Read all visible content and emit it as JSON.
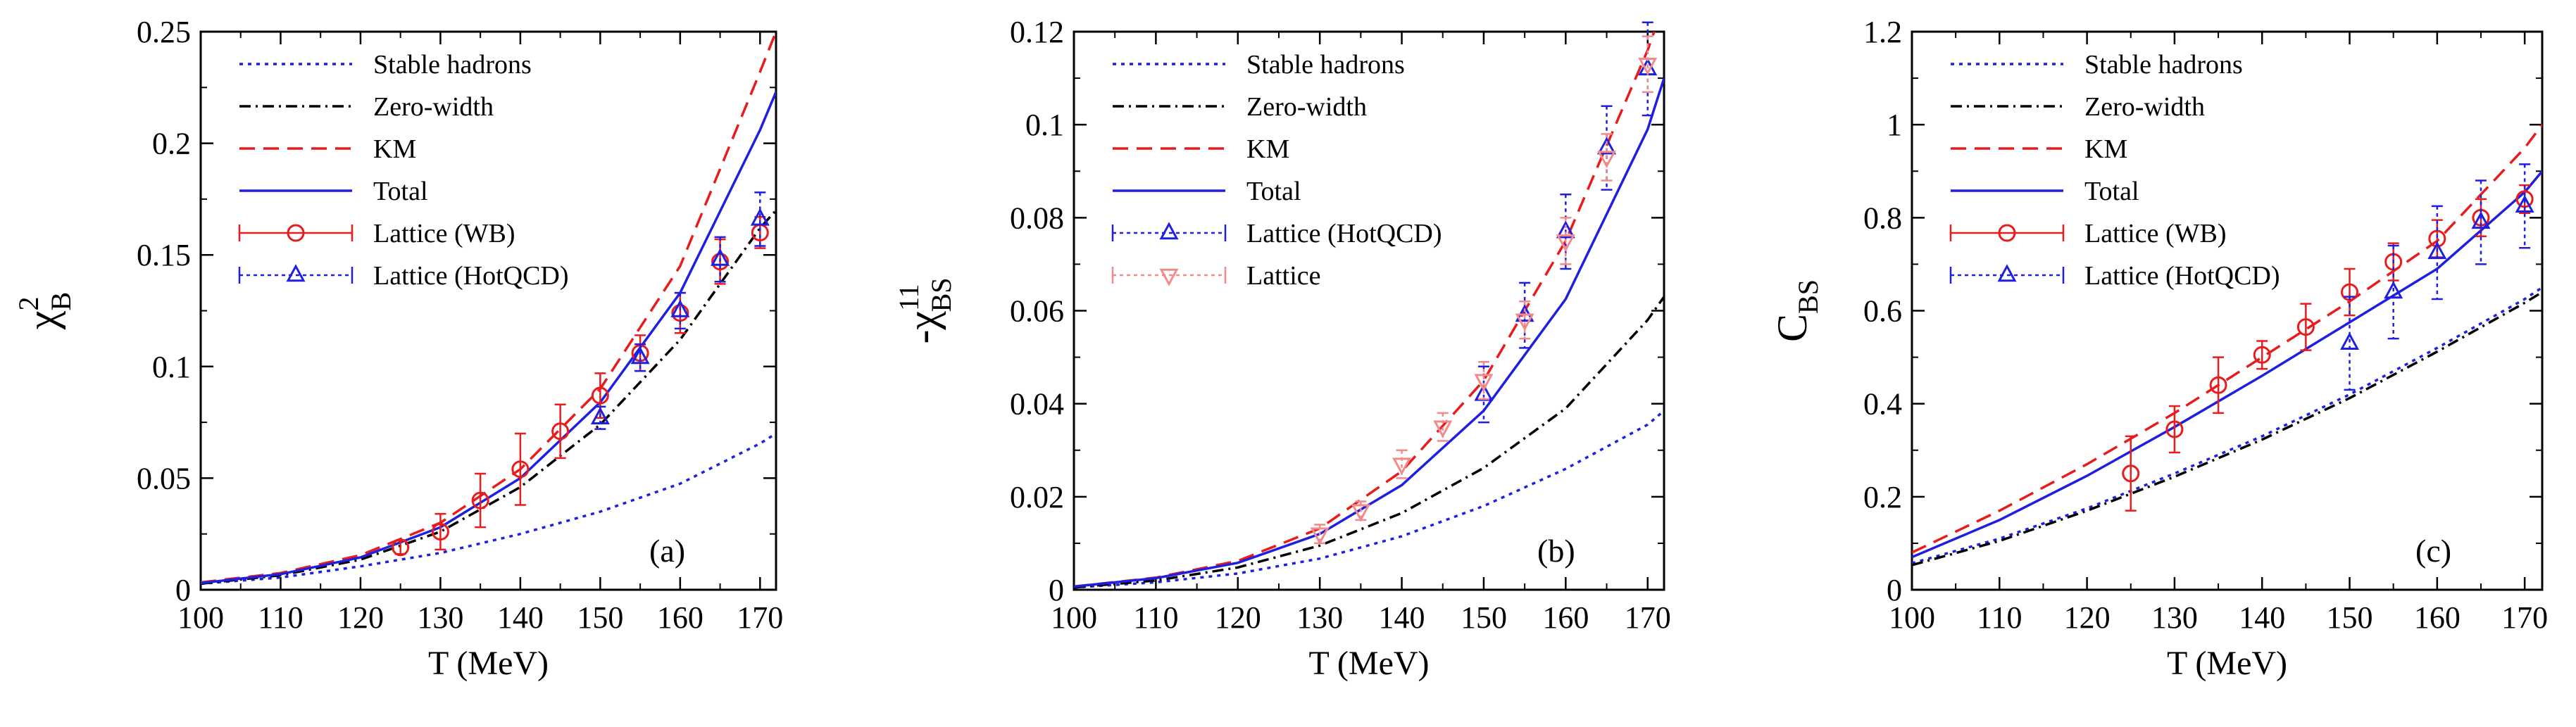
{
  "chart_data": [
    {
      "type": "line",
      "panel_label": "(a)",
      "ylabel": {
        "main": "χ",
        "sup": "2",
        "sub": "B"
      },
      "xlabel": "T (MeV)",
      "xlim": [
        100,
        172
      ],
      "ylim": [
        0,
        0.25
      ],
      "xticks": [
        100,
        110,
        120,
        130,
        140,
        150,
        160,
        170
      ],
      "xtick_labels": [
        "100",
        "110",
        "120",
        "130",
        "140",
        "150",
        "160",
        "170"
      ],
      "yticks": [
        0,
        0.05,
        0.1,
        0.15,
        0.2,
        0.25
      ],
      "ytick_labels": [
        "0",
        "0.05",
        "0.1",
        "0.15",
        "0.2",
        "0.25"
      ],
      "legend_position": "top-left",
      "series": [
        {
          "name": "Stable hadrons",
          "kind": "line",
          "style": "dotted",
          "color": "#1f1fe0",
          "x": [
            100,
            110,
            120,
            130,
            140,
            150,
            160,
            170,
            172
          ],
          "y": [
            0.0027,
            0.0055,
            0.0105,
            0.0165,
            0.025,
            0.035,
            0.0475,
            0.0655,
            0.07
          ]
        },
        {
          "name": "Zero-width",
          "kind": "line",
          "style": "dashdot",
          "color": "#000000",
          "x": [
            100,
            110,
            120,
            130,
            140,
            150,
            160,
            170,
            172
          ],
          "y": [
            0.0027,
            0.0065,
            0.0135,
            0.026,
            0.046,
            0.074,
            0.112,
            0.162,
            0.17
          ]
        },
        {
          "name": "KM",
          "kind": "line",
          "style": "dashed",
          "color": "#e81c1c",
          "x": [
            100,
            110,
            120,
            130,
            140,
            150,
            160,
            170,
            172
          ],
          "y": [
            0.0033,
            0.0075,
            0.0155,
            0.03,
            0.054,
            0.09,
            0.145,
            0.232,
            0.25
          ]
        },
        {
          "name": "Total",
          "kind": "line",
          "style": "solid",
          "color": "#1f1fe0",
          "x": [
            100,
            110,
            120,
            130,
            140,
            150,
            160,
            170,
            172
          ],
          "y": [
            0.003,
            0.007,
            0.0145,
            0.028,
            0.05,
            0.084,
            0.133,
            0.206,
            0.223
          ]
        },
        {
          "name": "Lattice (WB)",
          "kind": "points",
          "marker": "circle",
          "color": "#e81c1c",
          "x": [
            125,
            130,
            135,
            140,
            145,
            150,
            155,
            160,
            165,
            170
          ],
          "y": [
            0.019,
            0.026,
            0.04,
            0.054,
            0.071,
            0.087,
            0.106,
            0.124,
            0.147,
            0.16
          ],
          "err": [
            0.003,
            0.008,
            0.012,
            0.016,
            0.012,
            0.01,
            0.008,
            0.009,
            0.01,
            0.007
          ]
        },
        {
          "name": "Lattice (HotQCD)",
          "kind": "points",
          "marker": "triangle-up",
          "color": "#1f1fe0",
          "x": [
            150,
            155,
            160,
            165,
            170
          ],
          "y": [
            0.077,
            0.104,
            0.125,
            0.148,
            0.166
          ],
          "err": [
            0.005,
            0.006,
            0.008,
            0.01,
            0.012
          ]
        }
      ]
    },
    {
      "type": "line",
      "panel_label": "(b)",
      "ylabel": {
        "main": "-χ",
        "sup": "11",
        "sub": "BS"
      },
      "xlabel": "T (MeV)",
      "xlim": [
        100,
        172
      ],
      "ylim": [
        0,
        0.12
      ],
      "xticks": [
        100,
        110,
        120,
        130,
        140,
        150,
        160,
        170
      ],
      "xtick_labels": [
        "100",
        "110",
        "120",
        "130",
        "140",
        "150",
        "160",
        "170"
      ],
      "yticks": [
        0,
        0.02,
        0.04,
        0.06,
        0.08,
        0.1,
        0.12
      ],
      "ytick_labels": [
        "0",
        "0.02",
        "0.04",
        "0.06",
        "0.08",
        "0.1",
        "0.12"
      ],
      "legend_position": "top-left",
      "series": [
        {
          "name": "Stable hadrons",
          "kind": "line",
          "style": "dotted",
          "color": "#1f1fe0",
          "x": [
            100,
            110,
            120,
            130,
            140,
            150,
            160,
            170,
            172
          ],
          "y": [
            0.0005,
            0.0016,
            0.0035,
            0.0067,
            0.0115,
            0.018,
            0.026,
            0.0355,
            0.0385
          ]
        },
        {
          "name": "Zero-width",
          "kind": "line",
          "style": "dashdot",
          "color": "#000000",
          "x": [
            100,
            110,
            120,
            130,
            140,
            150,
            160,
            170,
            172
          ],
          "y": [
            0.0005,
            0.002,
            0.0048,
            0.0095,
            0.0165,
            0.0262,
            0.039,
            0.058,
            0.063
          ]
        },
        {
          "name": "KM",
          "kind": "line",
          "style": "dashed",
          "color": "#e81c1c",
          "x": [
            100,
            110,
            120,
            130,
            140,
            150,
            160,
            170,
            172
          ],
          "y": [
            0.0007,
            0.0026,
            0.0062,
            0.0132,
            0.0255,
            0.045,
            0.075,
            0.116,
            0.126
          ]
        },
        {
          "name": "Total",
          "kind": "line",
          "style": "solid",
          "color": "#1f1fe0",
          "x": [
            100,
            110,
            120,
            130,
            140,
            150,
            160,
            170,
            172
          ],
          "y": [
            0.0007,
            0.0025,
            0.0058,
            0.012,
            0.0225,
            0.0385,
            0.0625,
            0.099,
            0.11
          ]
        },
        {
          "name": "Lattice (HotQCD)",
          "kind": "points",
          "marker": "triangle-up",
          "color": "#1f1fe0",
          "x": [
            150,
            155,
            160,
            165,
            170
          ],
          "y": [
            0.042,
            0.059,
            0.077,
            0.095,
            0.112
          ],
          "err": [
            0.006,
            0.007,
            0.008,
            0.009,
            0.01
          ]
        },
        {
          "name": "Lattice",
          "kind": "points",
          "marker": "triangle-down",
          "color": "#f28a8a",
          "x": [
            130,
            135,
            140,
            145,
            150,
            155,
            160,
            165,
            170
          ],
          "y": [
            0.012,
            0.017,
            0.027,
            0.035,
            0.045,
            0.058,
            0.075,
            0.093,
            0.113
          ],
          "err": [
            0.002,
            0.002,
            0.003,
            0.003,
            0.004,
            0.004,
            0.005,
            0.005,
            0.006
          ]
        }
      ]
    },
    {
      "type": "line",
      "panel_label": "(c)",
      "ylabel": {
        "main": "C",
        "sup": "",
        "sub": "BS"
      },
      "xlabel": "T (MeV)",
      "xlim": [
        100,
        172
      ],
      "ylim": [
        0,
        1.2
      ],
      "xticks": [
        100,
        110,
        120,
        130,
        140,
        150,
        160,
        170
      ],
      "xtick_labels": [
        "100",
        "110",
        "120",
        "130",
        "140",
        "150",
        "160",
        "170"
      ],
      "yticks": [
        0,
        0.2,
        0.4,
        0.6,
        0.8,
        1.0,
        1.2
      ],
      "ytick_labels": [
        "0",
        "0.2",
        "0.4",
        "0.6",
        "0.8",
        "1",
        "1.2"
      ],
      "legend_position": "top-left",
      "series": [
        {
          "name": "Stable hadrons",
          "kind": "line",
          "style": "dotted",
          "color": "#1f1fe0",
          "x": [
            100,
            110,
            120,
            130,
            140,
            150,
            160,
            170,
            172
          ],
          "y": [
            0.057,
            0.11,
            0.175,
            0.25,
            0.33,
            0.42,
            0.52,
            0.625,
            0.65
          ]
        },
        {
          "name": "Zero-width",
          "kind": "line",
          "style": "dashdot",
          "color": "#000000",
          "x": [
            100,
            110,
            120,
            130,
            140,
            150,
            160,
            170,
            172
          ],
          "y": [
            0.053,
            0.105,
            0.17,
            0.243,
            0.323,
            0.412,
            0.512,
            0.617,
            0.64
          ]
        },
        {
          "name": "KM",
          "kind": "line",
          "style": "dashed",
          "color": "#e81c1c",
          "x": [
            100,
            110,
            120,
            130,
            140,
            150,
            160,
            170,
            172
          ],
          "y": [
            0.08,
            0.17,
            0.27,
            0.38,
            0.5,
            0.62,
            0.75,
            0.95,
            1.0
          ]
        },
        {
          "name": "Total",
          "kind": "line",
          "style": "solid",
          "color": "#1f1fe0",
          "x": [
            100,
            110,
            120,
            130,
            140,
            150,
            160,
            170,
            172
          ],
          "y": [
            0.07,
            0.15,
            0.245,
            0.35,
            0.46,
            0.575,
            0.69,
            0.855,
            0.9
          ]
        },
        {
          "name": "Lattice (WB)",
          "kind": "points",
          "marker": "circle",
          "color": "#e81c1c",
          "x": [
            125,
            130,
            135,
            140,
            145,
            150,
            155,
            160,
            165,
            170
          ],
          "y": [
            0.25,
            0.345,
            0.44,
            0.505,
            0.565,
            0.64,
            0.705,
            0.755,
            0.8,
            0.84
          ],
          "err": [
            0.08,
            0.05,
            0.06,
            0.03,
            0.05,
            0.05,
            0.04,
            0.04,
            0.04,
            0.03
          ]
        },
        {
          "name": "Lattice (HotQCD)",
          "kind": "points",
          "marker": "triangle-up",
          "color": "#1f1fe0",
          "x": [
            150,
            155,
            160,
            165,
            170
          ],
          "y": [
            0.53,
            0.64,
            0.725,
            0.79,
            0.825
          ],
          "err": [
            0.1,
            0.1,
            0.1,
            0.09,
            0.09
          ]
        }
      ]
    }
  ]
}
